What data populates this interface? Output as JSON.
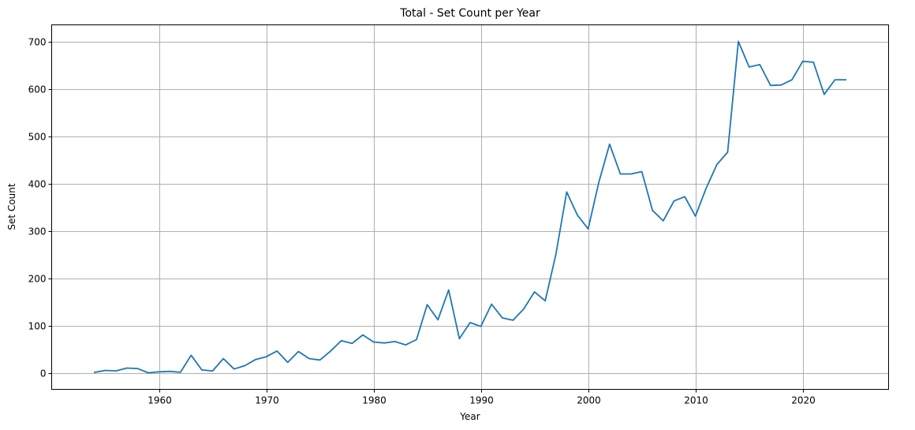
{
  "chart_data": {
    "type": "line",
    "title": "Total - Set Count per Year",
    "xlabel": "Year",
    "ylabel": "Set Count",
    "xlim": [
      1950,
      2028
    ],
    "ylim": [
      -35,
      735
    ],
    "xticks": [
      1960,
      1970,
      1980,
      1990,
      2000,
      2010,
      2020
    ],
    "yticks": [
      0,
      100,
      200,
      300,
      400,
      500,
      600,
      700
    ],
    "grid": true,
    "series": [
      {
        "color": "#1f77b4",
        "x": [
          1954,
          1955,
          1956,
          1957,
          1958,
          1959,
          1960,
          1961,
          1962,
          1963,
          1964,
          1965,
          1966,
          1967,
          1968,
          1969,
          1970,
          1971,
          1972,
          1973,
          1974,
          1975,
          1976,
          1977,
          1978,
          1979,
          1980,
          1981,
          1982,
          1983,
          1984,
          1985,
          1986,
          1987,
          1988,
          1989,
          1990,
          1991,
          1992,
          1993,
          1994,
          1995,
          1996,
          1997,
          1998,
          1999,
          2000,
          2001,
          2002,
          2003,
          2004,
          2005,
          2006,
          2007,
          2008,
          2009,
          2010,
          2011,
          2012,
          2013,
          2014,
          2015,
          2016,
          2017,
          2018,
          2019,
          2020,
          2021,
          2022,
          2023,
          2024
        ],
        "y": [
          1,
          5,
          4,
          10,
          9,
          0,
          2,
          3,
          1,
          37,
          6,
          4,
          30,
          8,
          15,
          28,
          34,
          46,
          22,
          45,
          30,
          27,
          46,
          68,
          62,
          80,
          65,
          63,
          66,
          59,
          70,
          144,
          112,
          175,
          72,
          106,
          98,
          145,
          116,
          111,
          135,
          171,
          152,
          251,
          382,
          333,
          304,
          403,
          483,
          420,
          420,
          425,
          343,
          321,
          363,
          372,
          331,
          390,
          440,
          466,
          700,
          646,
          651,
          607,
          608,
          619,
          658,
          656,
          588,
          619,
          619
        ]
      }
    ]
  }
}
